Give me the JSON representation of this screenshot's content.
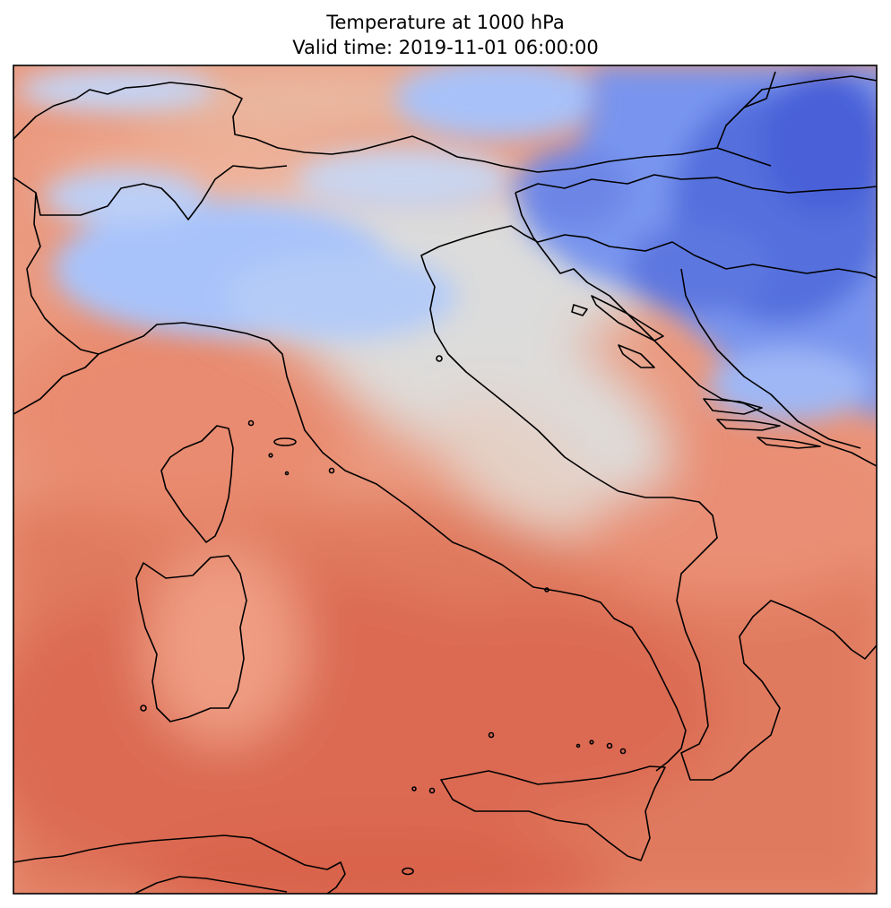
{
  "map": {
    "title_line1": "Temperature at 1000 hPa",
    "title_line2": "Valid time: 2019-11-01 06:00:00",
    "field": "temperature",
    "pressure_level": "1000 hPa",
    "colormap": "coolwarm",
    "colors": {
      "cold_deep": "#3d57d6",
      "cold": "#7b9bf2",
      "cool": "#aac4fb",
      "neutral": "#dcdcdc",
      "mild": "#f2b49a",
      "warm": "#e9886c",
      "hot": "#dc6149",
      "coastline": "#000000",
      "frame": "#000000"
    }
  }
}
